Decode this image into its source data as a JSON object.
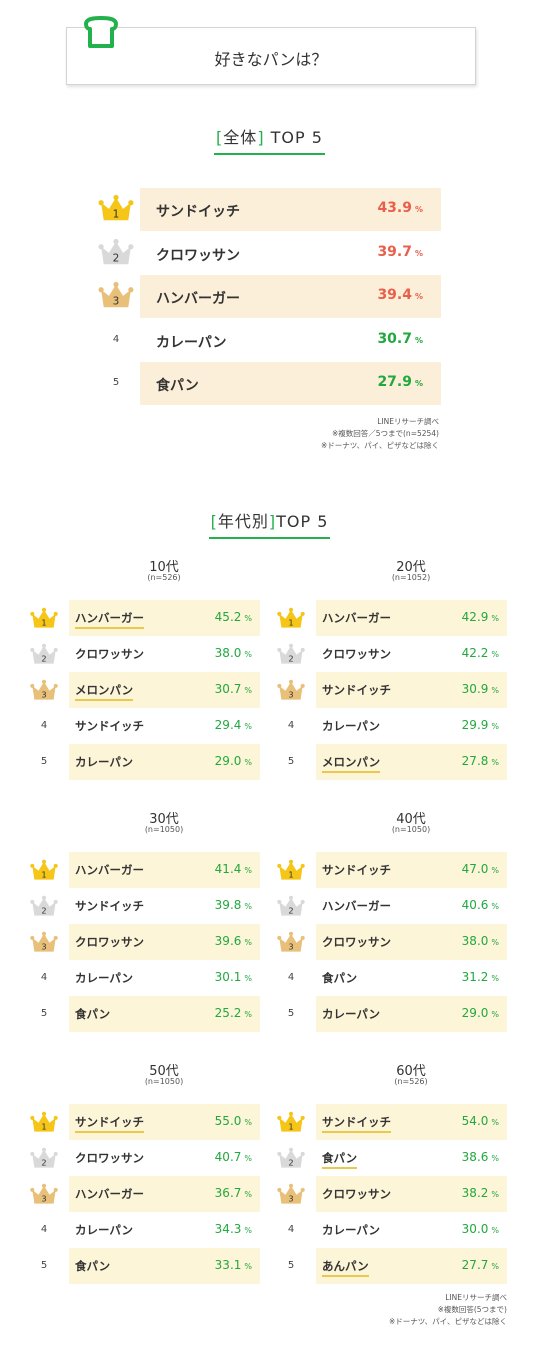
{
  "title": "好きなパンは？",
  "overall": {
    "heading_bracket_open": "[",
    "heading_word": "全体",
    "heading_bracket_close": "]",
    "heading_rest": "TOP 5",
    "rows": [
      {
        "rank": "1",
        "name": "サンドイッチ",
        "pct": "43.9",
        "unit": "%"
      },
      {
        "rank": "2",
        "name": "クロワッサン",
        "pct": "39.7",
        "unit": "%"
      },
      {
        "rank": "3",
        "name": "ハンバーガー",
        "pct": "39.4",
        "unit": "%"
      },
      {
        "rank": "4",
        "name": "カレーパン",
        "pct": "30.7",
        "unit": "%"
      },
      {
        "rank": "5",
        "name": "食パン",
        "pct": "27.9",
        "unit": "%"
      }
    ],
    "notes": [
      "LINEリサーチ調べ",
      "※複数回答／5つまで(n=5254)",
      "※ドーナツ、パイ、ピザなどは除く"
    ]
  },
  "by_age": {
    "heading_bracket_open": "[",
    "heading_word": "年代別",
    "heading_bracket_close": "]",
    "heading_rest": "TOP 5",
    "groups": [
      {
        "label": "10代",
        "n": "(n=526)",
        "rows": [
          {
            "rank": "1",
            "name": "ハンバーガー",
            "pct": "45.2",
            "unit": "%"
          },
          {
            "rank": "2",
            "name": "クロワッサン",
            "pct": "38.0",
            "unit": "%"
          },
          {
            "rank": "3",
            "name": "メロンパン",
            "pct": "30.7",
            "unit": "%"
          },
          {
            "rank": "4",
            "name": "サンドイッチ",
            "pct": "29.4",
            "unit": "%"
          },
          {
            "rank": "5",
            "name": "カレーパン",
            "pct": "29.0",
            "unit": "%"
          }
        ]
      },
      {
        "label": "20代",
        "n": "(n=1052)",
        "rows": [
          {
            "rank": "1",
            "name": "ハンバーガー",
            "pct": "42.9",
            "unit": "%"
          },
          {
            "rank": "2",
            "name": "クロワッサン",
            "pct": "42.2",
            "unit": "%"
          },
          {
            "rank": "3",
            "name": "サンドイッチ",
            "pct": "30.9",
            "unit": "%"
          },
          {
            "rank": "4",
            "name": "カレーパン",
            "pct": "29.9",
            "unit": "%"
          },
          {
            "rank": "5",
            "name": "メロンパン",
            "pct": "27.8",
            "unit": "%"
          }
        ]
      },
      {
        "label": "30代",
        "n": "(n=1050)",
        "rows": [
          {
            "rank": "1",
            "name": "ハンバーガー",
            "pct": "41.4",
            "unit": "%"
          },
          {
            "rank": "2",
            "name": "サンドイッチ",
            "pct": "39.8",
            "unit": "%"
          },
          {
            "rank": "3",
            "name": "クロワッサン",
            "pct": "39.6",
            "unit": "%"
          },
          {
            "rank": "4",
            "name": "カレーパン",
            "pct": "30.1",
            "unit": "%"
          },
          {
            "rank": "5",
            "name": "食パン",
            "pct": "25.2",
            "unit": "%"
          }
        ]
      },
      {
        "label": "40代",
        "n": "(n=1050)",
        "rows": [
          {
            "rank": "1",
            "name": "サンドイッチ",
            "pct": "47.0",
            "unit": "%"
          },
          {
            "rank": "2",
            "name": "ハンバーガー",
            "pct": "40.6",
            "unit": "%"
          },
          {
            "rank": "3",
            "name": "クロワッサン",
            "pct": "38.0",
            "unit": "%"
          },
          {
            "rank": "4",
            "name": "食パン",
            "pct": "31.2",
            "unit": "%"
          },
          {
            "rank": "5",
            "name": "カレーパン",
            "pct": "29.0",
            "unit": "%"
          }
        ]
      },
      {
        "label": "50代",
        "n": "(n=1050)",
        "rows": [
          {
            "rank": "1",
            "name": "サンドイッチ",
            "pct": "55.0",
            "unit": "%"
          },
          {
            "rank": "2",
            "name": "クロワッサン",
            "pct": "40.7",
            "unit": "%"
          },
          {
            "rank": "3",
            "name": "ハンバーガー",
            "pct": "36.7",
            "unit": "%"
          },
          {
            "rank": "4",
            "name": "カレーパン",
            "pct": "34.3",
            "unit": "%"
          },
          {
            "rank": "5",
            "name": "食パン",
            "pct": "33.1",
            "unit": "%"
          }
        ]
      },
      {
        "label": "60代",
        "n": "(n=526)",
        "rows": [
          {
            "rank": "1",
            "name": "サンドイッチ",
            "pct": "54.0",
            "unit": "%"
          },
          {
            "rank": "2",
            "name": "食パン",
            "pct": "38.6",
            "unit": "%"
          },
          {
            "rank": "3",
            "name": "クロワッサン",
            "pct": "38.2",
            "unit": "%"
          },
          {
            "rank": "4",
            "name": "カレーパン",
            "pct": "30.0",
            "unit": "%"
          },
          {
            "rank": "5",
            "name": "あんパン",
            "pct": "27.7",
            "unit": "%"
          }
        ]
      }
    ],
    "notes": [
      "LINEリサーチ調べ",
      "※複数回答(5つまで)",
      "※ドーナツ、パイ、ピザなどは除く"
    ]
  },
  "colors": {
    "accent_green": "#22b14c",
    "overall_pct": "#e8604c",
    "overall_pct_low": "#22a83e",
    "highlight": "#fcefd9",
    "gold": "#f5c518",
    "silver": "#d9d9d9",
    "bronze": "#e8c07a"
  },
  "chart_data": [
    {
      "type": "table",
      "title": "全体 TOP 5",
      "categories": [
        "サンドイッチ",
        "クロワッサン",
        "ハンバーガー",
        "カレーパン",
        "食パン"
      ],
      "values": [
        43.9,
        39.7,
        39.4,
        30.7,
        27.9
      ]
    },
    {
      "type": "table",
      "title": "10代",
      "categories": [
        "ハンバーガー",
        "クロワッサン",
        "メロンパン",
        "サンドイッチ",
        "カレーパン"
      ],
      "values": [
        45.2,
        38.0,
        30.7,
        29.4,
        29.0
      ]
    },
    {
      "type": "table",
      "title": "20代",
      "categories": [
        "ハンバーガー",
        "クロワッサン",
        "サンドイッチ",
        "カレーパン",
        "メロンパン"
      ],
      "values": [
        42.9,
        42.2,
        30.9,
        29.9,
        27.8
      ]
    },
    {
      "type": "table",
      "title": "30代",
      "categories": [
        "ハンバーガー",
        "サンドイッチ",
        "クロワッサン",
        "カレーパン",
        "食パン"
      ],
      "values": [
        41.4,
        39.8,
        39.6,
        30.1,
        25.2
      ]
    },
    {
      "type": "table",
      "title": "40代",
      "categories": [
        "サンドイッチ",
        "ハンバーガー",
        "クロワッサン",
        "食パン",
        "カレーパン"
      ],
      "values": [
        47.0,
        40.6,
        38.0,
        31.2,
        29.0
      ]
    },
    {
      "type": "table",
      "title": "50代",
      "categories": [
        "サンドイッチ",
        "クロワッサン",
        "ハンバーガー",
        "カレーパン",
        "食パン"
      ],
      "values": [
        55.0,
        40.7,
        36.7,
        34.3,
        33.1
      ]
    },
    {
      "type": "table",
      "title": "60代",
      "categories": [
        "サンドイッチ",
        "食パン",
        "クロワッサン",
        "カレーパン",
        "あんパン"
      ],
      "values": [
        54.0,
        38.6,
        38.2,
        30.0,
        27.7
      ]
    }
  ]
}
